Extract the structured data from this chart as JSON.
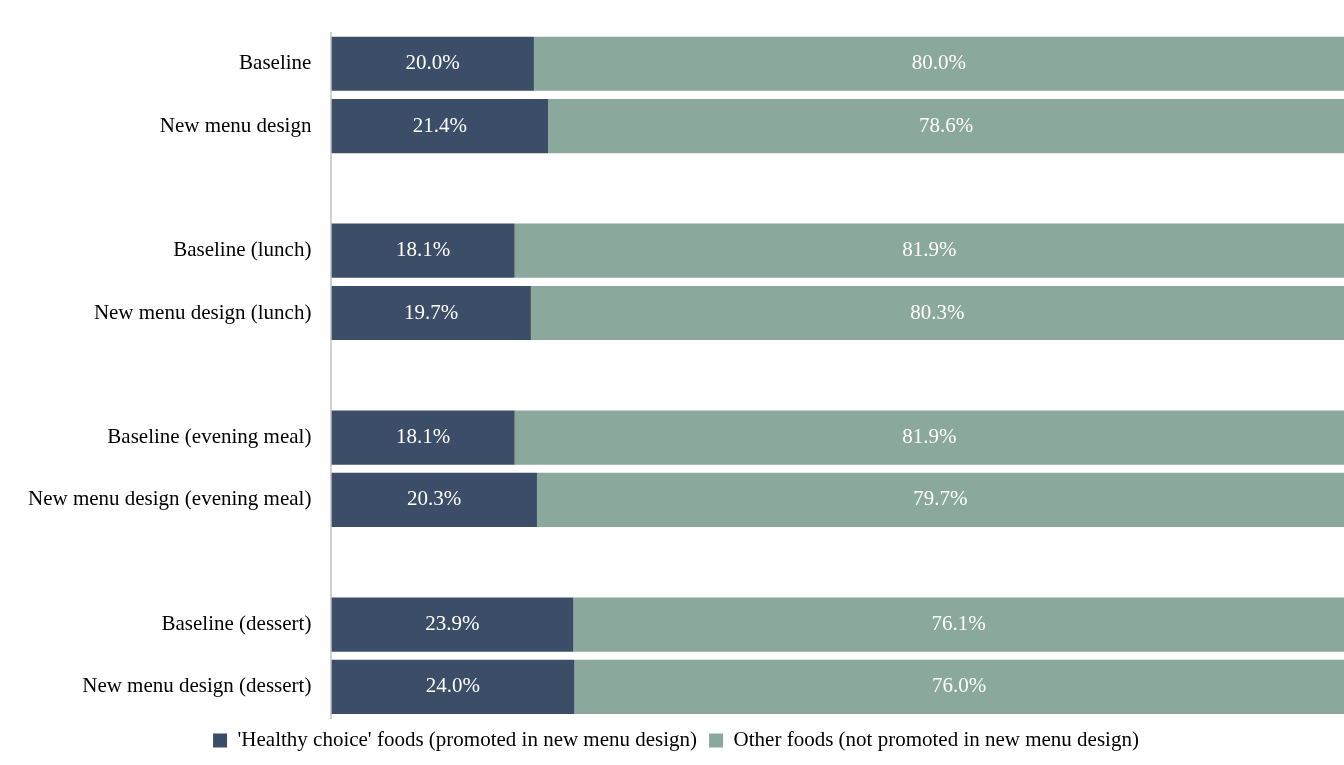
{
  "chart_data": {
    "type": "bar",
    "orientation": "horizontal",
    "stacked": true,
    "categories": [
      "Baseline",
      "New menu design",
      null,
      "Baseline (lunch)",
      "New menu design (lunch)",
      null,
      "Baseline (evening meal)",
      "New menu design (evening meal)",
      null,
      "Baseline (dessert)",
      "New menu design (dessert)"
    ],
    "series": [
      {
        "name": "'Healthy choice' foods (promoted in new menu design)",
        "color": "#3c4d68",
        "values": [
          20.0,
          21.4,
          null,
          18.1,
          19.7,
          null,
          18.1,
          20.3,
          null,
          23.9,
          24.0
        ],
        "value_labels": [
          "20.0%",
          "21.4%",
          null,
          "18.1%",
          "19.7%",
          null,
          "18.1%",
          "20.3%",
          null,
          "23.9%",
          "24.0%"
        ]
      },
      {
        "name": "Other foods (not promoted in new menu design)",
        "color": "#8ba89c",
        "values": [
          80.0,
          78.6,
          null,
          81.9,
          80.3,
          null,
          81.9,
          79.7,
          null,
          76.1,
          76.0
        ],
        "value_labels": [
          "80.0%",
          "78.6%",
          null,
          "81.9%",
          "80.3%",
          null,
          "81.9%",
          "79.7%",
          null,
          "76.1%",
          "76.0%"
        ]
      }
    ],
    "xlim": [
      0,
      100
    ],
    "tick_labels": "y",
    "legend": "bottom"
  }
}
